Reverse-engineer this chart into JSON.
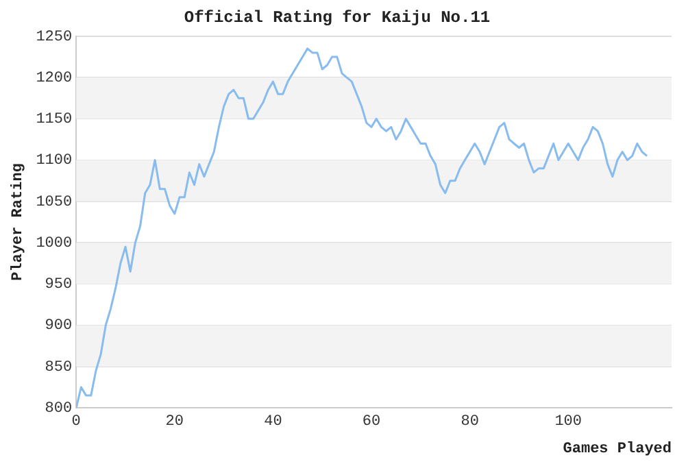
{
  "chart_data": {
    "type": "line",
    "title": "Official Rating for Kaiju No.11",
    "xlabel": "Games Played",
    "ylabel": "Player Rating",
    "x": [
      0,
      1,
      2,
      3,
      4,
      5,
      6,
      7,
      8,
      9,
      10,
      11,
      12,
      13,
      14,
      15,
      16,
      17,
      18,
      19,
      20,
      21,
      22,
      23,
      24,
      25,
      26,
      27,
      28,
      29,
      30,
      31,
      32,
      33,
      34,
      35,
      36,
      37,
      38,
      39,
      40,
      41,
      42,
      43,
      44,
      45,
      46,
      47,
      48,
      49,
      50,
      51,
      52,
      53,
      54,
      55,
      56,
      57,
      58,
      59,
      60,
      61,
      62,
      63,
      64,
      65,
      66,
      67,
      68,
      69,
      70,
      71,
      72,
      73,
      74,
      75,
      76,
      77,
      78,
      79,
      80,
      81,
      82,
      83,
      84,
      85,
      86,
      87,
      88,
      89,
      90,
      91,
      92,
      93,
      94,
      95,
      96,
      97,
      98,
      99,
      100,
      101,
      102,
      103,
      104,
      105,
      106,
      107,
      108,
      109,
      110,
      111,
      112,
      113,
      114,
      115,
      116
    ],
    "series": [
      {
        "color": "#88bbee",
        "values": [
          800,
          825,
          815,
          815,
          845,
          865,
          900,
          920,
          945,
          975,
          995,
          965,
          1000,
          1020,
          1060,
          1070,
          1100,
          1065,
          1065,
          1045,
          1035,
          1055,
          1055,
          1085,
          1070,
          1095,
          1080,
          1095,
          1110,
          1140,
          1165,
          1180,
          1185,
          1175,
          1175,
          1150,
          1150,
          1160,
          1170,
          1185,
          1195,
          1180,
          1180,
          1195,
          1205,
          1215,
          1225,
          1235,
          1230,
          1230,
          1210,
          1215,
          1225,
          1225,
          1205,
          1200,
          1195,
          1180,
          1165,
          1145,
          1140,
          1150,
          1140,
          1135,
          1140,
          1125,
          1135,
          1150,
          1140,
          1130,
          1120,
          1120,
          1105,
          1095,
          1070,
          1060,
          1075,
          1075,
          1090,
          1100,
          1110,
          1120,
          1110,
          1095,
          1110,
          1125,
          1140,
          1145,
          1125,
          1120,
          1115,
          1120,
          1100,
          1085,
          1090,
          1090,
          1105,
          1120,
          1100,
          1110,
          1120,
          1110,
          1100,
          1115,
          1125,
          1140,
          1135,
          1120,
          1095,
          1080,
          1100,
          1110,
          1100,
          1105,
          1120,
          1110,
          1105
        ]
      }
    ],
    "xlim": [
      0,
      121
    ],
    "xticks": [
      0,
      20,
      40,
      60,
      80,
      100
    ],
    "ylim": [
      800,
      1250
    ],
    "yticks": [
      800,
      850,
      900,
      950,
      1000,
      1050,
      1100,
      1150,
      1200,
      1250
    ],
    "grid": "y",
    "legend": false,
    "marker": "none",
    "line_style": "solid"
  }
}
